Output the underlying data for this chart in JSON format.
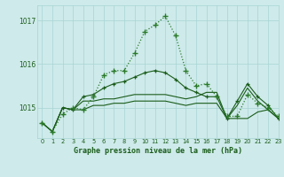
{
  "title": "Graphe pression niveau de la mer (hPa)",
  "background_color": "#ceeaea",
  "grid_color": "#a8d4d4",
  "line_color_dark": "#1a5c1a",
  "line_color_mid": "#2a7a2a",
  "xlim": [
    -0.5,
    23
  ],
  "ylim": [
    1014.3,
    1017.35
  ],
  "yticks": [
    1015,
    1016,
    1017
  ],
  "xticks": [
    0,
    1,
    2,
    3,
    4,
    5,
    6,
    7,
    8,
    9,
    10,
    11,
    12,
    13,
    14,
    15,
    16,
    17,
    18,
    19,
    20,
    21,
    22,
    23
  ],
  "series1": [
    1014.65,
    1014.45,
    1014.85,
    1015.0,
    1014.95,
    1015.25,
    1015.75,
    1015.85,
    1015.85,
    1016.25,
    1016.75,
    1016.9,
    1017.1,
    1016.65,
    1015.85,
    1015.5,
    1015.55,
    1015.25,
    1014.8,
    1014.8,
    1015.3,
    1015.1,
    1015.0,
    1014.8
  ],
  "series2": [
    1014.65,
    1014.45,
    1015.0,
    1014.95,
    1014.95,
    1015.05,
    1015.05,
    1015.1,
    1015.1,
    1015.15,
    1015.15,
    1015.15,
    1015.15,
    1015.1,
    1015.05,
    1015.1,
    1015.1,
    1015.1,
    1014.75,
    1014.75,
    1014.75,
    1014.9,
    1014.95,
    1014.75
  ],
  "series3": [
    1014.65,
    1014.45,
    1015.0,
    1014.95,
    1015.15,
    1015.15,
    1015.2,
    1015.2,
    1015.25,
    1015.3,
    1015.3,
    1015.3,
    1015.3,
    1015.25,
    1015.2,
    1015.25,
    1015.35,
    1015.35,
    1014.75,
    1015.05,
    1015.45,
    1015.15,
    1014.95,
    1014.75
  ],
  "series4": [
    1014.65,
    1014.45,
    1015.0,
    1014.95,
    1015.25,
    1015.3,
    1015.45,
    1015.55,
    1015.6,
    1015.7,
    1015.8,
    1015.85,
    1015.8,
    1015.65,
    1015.45,
    1015.35,
    1015.25,
    1015.25,
    1014.75,
    1015.15,
    1015.55,
    1015.25,
    1015.05,
    1014.75
  ]
}
